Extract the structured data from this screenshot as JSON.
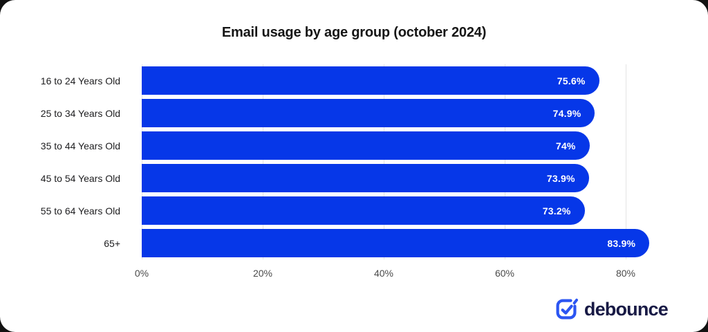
{
  "chart_data": {
    "type": "bar",
    "orientation": "horizontal",
    "title": "Email usage by age group (october 2024)",
    "categories": [
      "16 to 24 Years Old",
      "25 to 34 Years Old",
      "35 to 44 Years Old",
      "45 to 54 Years Old",
      "55 to 64 Years Old",
      "65+"
    ],
    "values": [
      75.6,
      74.9,
      74,
      73.9,
      73.2,
      83.9
    ],
    "value_labels": [
      "75.6%",
      "74.9%",
      "74%",
      "73.9%",
      "73.2%",
      "83.9%"
    ],
    "x_ticks": [
      0,
      20,
      40,
      60,
      80
    ],
    "x_tick_labels": [
      "0%",
      "20%",
      "40%",
      "60%",
      "80%"
    ],
    "xlim": [
      0,
      86
    ],
    "grid": "vertical-only",
    "legend": "none",
    "bar_color": "#0637e8",
    "value_label_color": "#ffffff"
  },
  "branding": {
    "logo_text": "debounce",
    "logo_icon": "checkbox-check-icon",
    "icon_color": "#2b55f2",
    "text_color": "#181a45"
  }
}
